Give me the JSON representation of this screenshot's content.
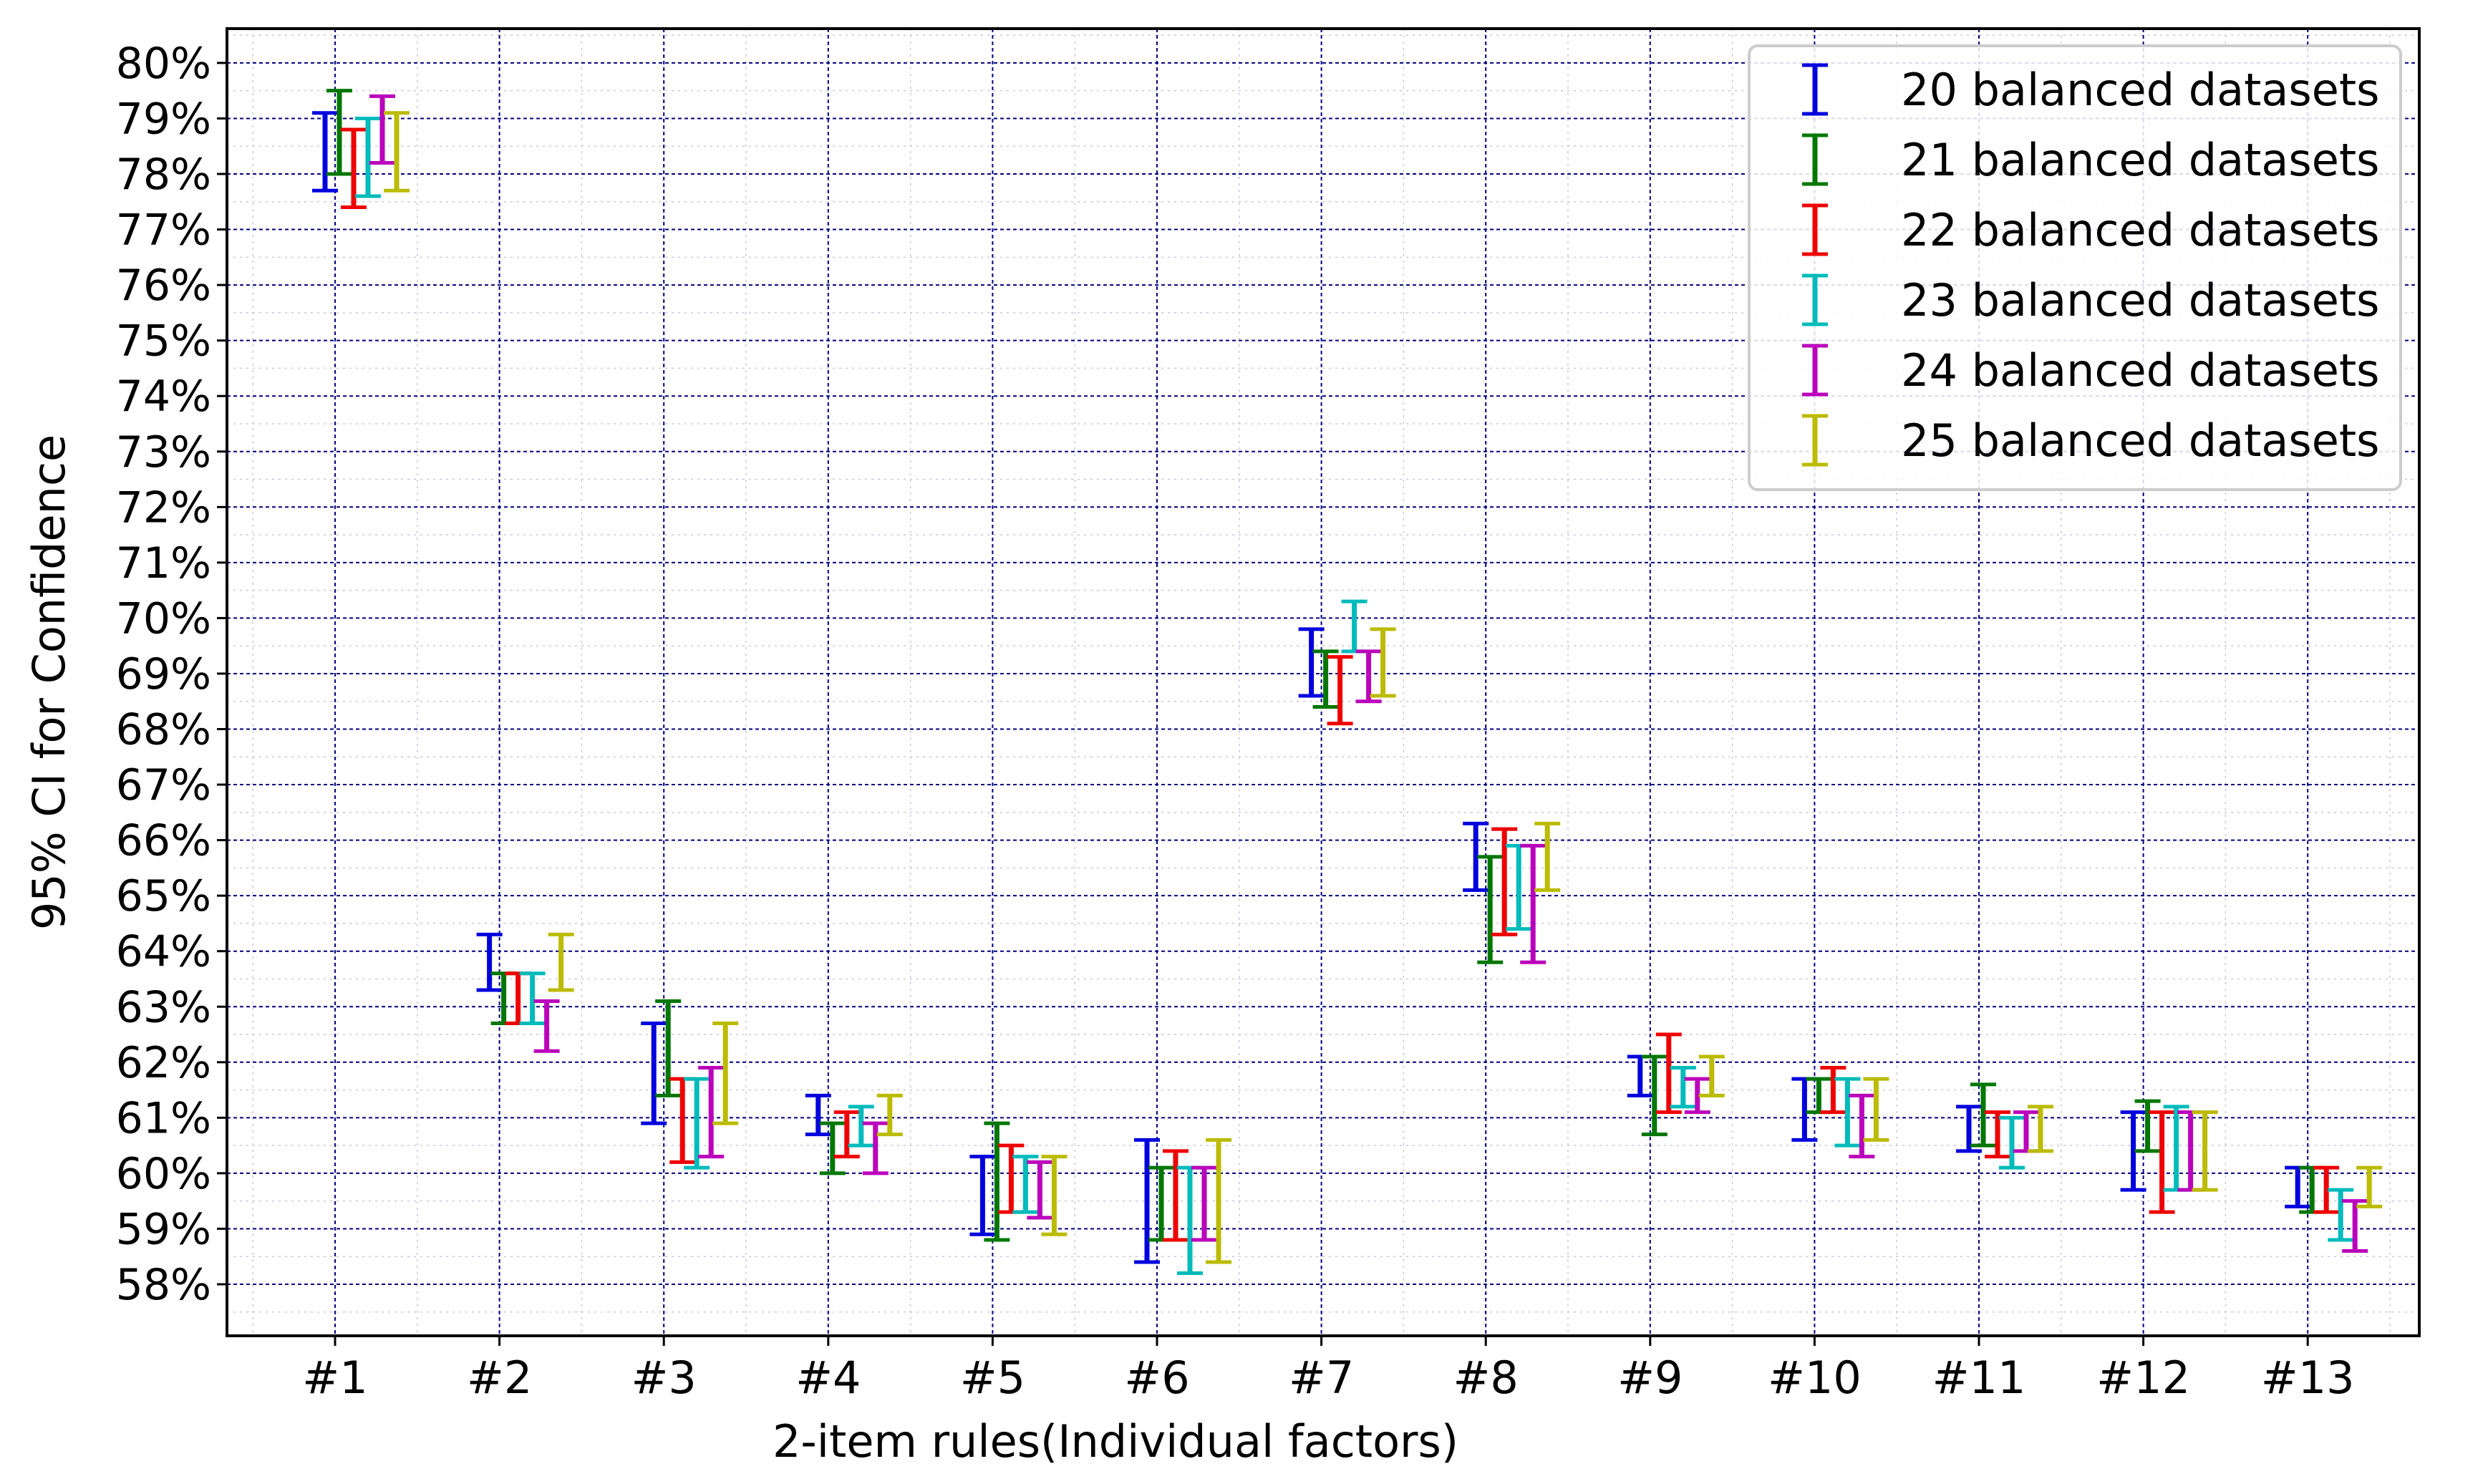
{
  "chart_data": {
    "type": "errorbar",
    "title": "",
    "xlabel": "2-item rules(Individual factors)",
    "ylabel": "95% CI for Confidence",
    "ylim": [
      57.1,
      81
    ],
    "y_ticks": [
      "58%",
      "59%",
      "60%",
      "61%",
      "62%",
      "63%",
      "64%",
      "65%",
      "66%",
      "67%",
      "68%",
      "69%",
      "70%",
      "71%",
      "72%",
      "73%",
      "74%",
      "75%",
      "76%",
      "77%",
      "78%",
      "79%",
      "80%"
    ],
    "y_tick_values": [
      58,
      59,
      60,
      61,
      62,
      63,
      64,
      65,
      66,
      67,
      68,
      69,
      70,
      71,
      72,
      73,
      74,
      75,
      76,
      77,
      78,
      79,
      80
    ],
    "categories": [
      "#1",
      "#2",
      "#3",
      "#4",
      "#5",
      "#6",
      "#7",
      "#8",
      "#9",
      "#10",
      "#11",
      "#12",
      "#13"
    ],
    "grid": true,
    "legend_position": "top-right",
    "series": [
      {
        "name": "20 balanced datasets",
        "color": "#0000dd",
        "intervals": [
          [
            77.7,
            79.1
          ],
          [
            63.3,
            64.3
          ],
          [
            60.9,
            62.7
          ],
          [
            60.7,
            61.4
          ],
          [
            58.9,
            60.3
          ],
          [
            58.4,
            60.6
          ],
          [
            68.6,
            69.8
          ],
          [
            65.1,
            66.3
          ],
          [
            61.4,
            62.1
          ],
          [
            60.6,
            61.7
          ],
          [
            60.4,
            61.2
          ],
          [
            59.7,
            61.1
          ],
          [
            59.4,
            60.1
          ]
        ]
      },
      {
        "name": "21 balanced datasets",
        "color": "#007700",
        "intervals": [
          [
            78.0,
            79.5
          ],
          [
            62.7,
            63.6
          ],
          [
            61.4,
            63.1
          ],
          [
            60.0,
            60.9
          ],
          [
            58.8,
            60.9
          ],
          [
            58.8,
            60.1
          ],
          [
            68.4,
            69.4
          ],
          [
            63.8,
            65.7
          ],
          [
            60.7,
            62.1
          ],
          [
            61.1,
            61.7
          ],
          [
            60.5,
            61.6
          ],
          [
            60.4,
            61.3
          ],
          [
            59.3,
            60.1
          ]
        ]
      },
      {
        "name": "22 balanced datasets",
        "color": "#ee0000",
        "intervals": [
          [
            77.4,
            78.8
          ],
          [
            62.7,
            63.6
          ],
          [
            60.2,
            61.7
          ],
          [
            60.3,
            61.1
          ],
          [
            59.3,
            60.5
          ],
          [
            58.8,
            60.4
          ],
          [
            68.1,
            69.3
          ],
          [
            64.3,
            66.2
          ],
          [
            61.1,
            62.5
          ],
          [
            61.1,
            61.9
          ],
          [
            60.3,
            61.1
          ],
          [
            59.3,
            61.1
          ],
          [
            59.3,
            60.1
          ]
        ]
      },
      {
        "name": "23 balanced datasets",
        "color": "#00bbbb",
        "intervals": [
          [
            77.6,
            79.0
          ],
          [
            62.7,
            63.6
          ],
          [
            60.1,
            61.7
          ],
          [
            60.5,
            61.2
          ],
          [
            59.3,
            60.3
          ],
          [
            58.2,
            60.1
          ],
          [
            69.4,
            70.3
          ],
          [
            64.4,
            65.9
          ],
          [
            61.2,
            61.9
          ],
          [
            60.5,
            61.7
          ],
          [
            60.1,
            61.0
          ],
          [
            59.7,
            61.2
          ],
          [
            58.8,
            59.7
          ]
        ]
      },
      {
        "name": "24 balanced datasets",
        "color": "#bb00bb",
        "intervals": [
          [
            78.2,
            79.4
          ],
          [
            62.2,
            63.1
          ],
          [
            60.3,
            61.9
          ],
          [
            60.0,
            60.9
          ],
          [
            59.2,
            60.2
          ],
          [
            58.8,
            60.1
          ],
          [
            68.5,
            69.4
          ],
          [
            63.8,
            65.9
          ],
          [
            61.1,
            61.7
          ],
          [
            60.3,
            61.4
          ],
          [
            60.4,
            61.1
          ],
          [
            59.7,
            61.1
          ],
          [
            58.6,
            59.5
          ]
        ]
      },
      {
        "name": "25 balanced datasets",
        "color": "#bbbb00",
        "intervals": [
          [
            77.7,
            79.1
          ],
          [
            63.3,
            64.3
          ],
          [
            60.9,
            62.7
          ],
          [
            60.7,
            61.4
          ],
          [
            58.9,
            60.3
          ],
          [
            58.4,
            60.6
          ],
          [
            68.6,
            69.8
          ],
          [
            65.1,
            66.3
          ],
          [
            61.4,
            62.1
          ],
          [
            60.6,
            61.7
          ],
          [
            60.4,
            61.2
          ],
          [
            59.7,
            61.1
          ],
          [
            59.4,
            60.1
          ]
        ]
      }
    ]
  }
}
